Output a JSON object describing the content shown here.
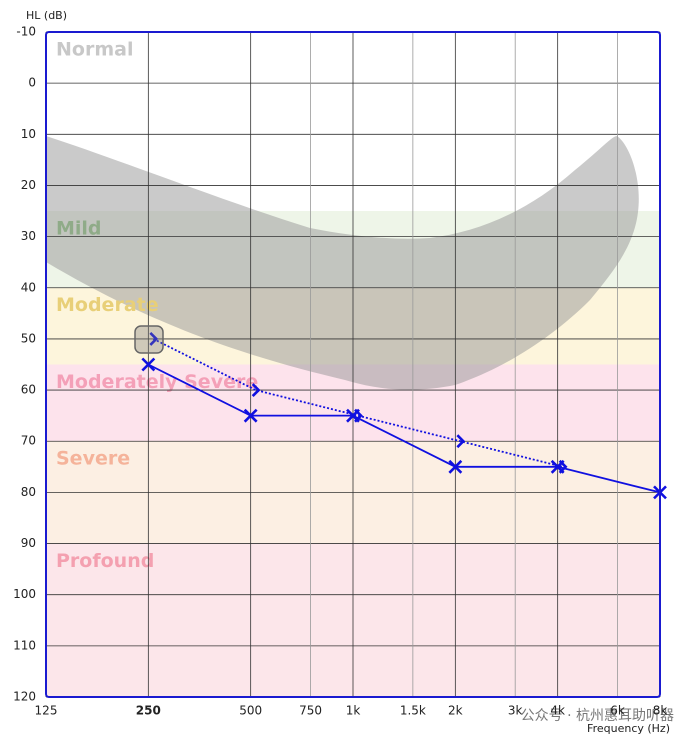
{
  "chart_data": {
    "type": "audiogram",
    "y_label": "HL (dB)",
    "x_label": "Frequency (Hz)",
    "log_x": true,
    "xlim": [
      125,
      8000
    ],
    "xticks": [
      125,
      {
        "value": 250,
        "label": "250",
        "bold": true
      },
      500,
      750,
      {
        "value": 1000,
        "label": "1k"
      },
      {
        "value": 1500,
        "label": "1.5k"
      },
      {
        "value": 2000,
        "label": "2k"
      },
      {
        "value": 3000,
        "label": "3k"
      },
      {
        "value": 4000,
        "label": "4k"
      },
      {
        "value": 6000,
        "label": "6k"
      },
      {
        "value": 8000,
        "label": "8k"
      }
    ],
    "ylim": [
      -10,
      120
    ],
    "yticks": [
      -10,
      0,
      10,
      20,
      30,
      40,
      50,
      60,
      70,
      80,
      90,
      100,
      110,
      120
    ],
    "bands": [
      {
        "label": "Normal",
        "from": -10,
        "to": 25,
        "color": "#ffffff",
        "text_color": "#c8c8c8"
      },
      {
        "label": "Mild",
        "from": 25,
        "to": 40,
        "color": "#eef5e8",
        "text_color": "#8fab88"
      },
      {
        "label": "Moderate",
        "from": 40,
        "to": 55,
        "color": "#fdf5dc",
        "text_color": "#e8cf78"
      },
      {
        "label": "Moderately Severe",
        "from": 55,
        "to": 70,
        "color": "#fde3ec",
        "text_color": "#f4a0b8"
      },
      {
        "label": "Severe",
        "from": 70,
        "to": 90,
        "color": "#fcefe3",
        "text_color": "#f5b39a"
      },
      {
        "label": "Profound",
        "from": 90,
        "to": 120,
        "color": "#fce6ea",
        "text_color": "#f4a0b0"
      }
    ],
    "series": [
      {
        "marker": "x",
        "line": "solid",
        "color": "#1010e0",
        "x": [
          250,
          500,
          1000,
          2000,
          4000,
          8000
        ],
        "values": [
          55,
          65,
          65,
          75,
          75,
          80
        ]
      },
      {
        "marker": "bracket",
        "line": "dotted",
        "color": "#1010e0",
        "x": [
          250,
          500,
          1000,
          2000,
          4000
        ],
        "values": [
          50,
          60,
          65,
          70,
          75
        ]
      }
    ],
    "watermark": "公众号 · 杭州惠耳助听器"
  }
}
